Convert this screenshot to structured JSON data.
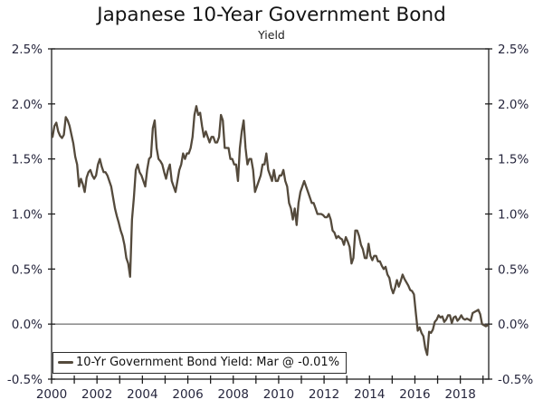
{
  "title": "Japanese 10-Year Government Bond",
  "subtitle": "Yield",
  "legend": {
    "label": "10-Yr Government Bond Yield: Mar @ -0.01%"
  },
  "colors": {
    "line": "#544a3c",
    "axis": "#1f1f1f",
    "zero_line": "#4a4a4a",
    "tick_label": "#26263d"
  },
  "chart_data": {
    "type": "line",
    "title": "Japanese 10-Year Government Bond",
    "subtitle": "Yield",
    "legend_entry": "10-Yr Government Bond Yield: Mar @ -0.01%",
    "ylim": [
      -0.5,
      2.5
    ],
    "xlim": [
      2000,
      2019.25
    ],
    "grid": false,
    "legend_position": "bottom-left",
    "y_tick_values": [
      2.5,
      2.0,
      1.5,
      1.0,
      0.5,
      0.0,
      -0.5
    ],
    "y_tick_labels": [
      "2.5%",
      "2.0%",
      "1.5%",
      "1.0%",
      "0.5%",
      "0.0%",
      "-0.5%"
    ],
    "x_tick_years": [
      2000,
      2001,
      2002,
      2003,
      2004,
      2005,
      2006,
      2007,
      2008,
      2009,
      2010,
      2011,
      2012,
      2013,
      2014,
      2015,
      2016,
      2017,
      2018,
      2019
    ],
    "x_label_years": [
      2000,
      2002,
      2004,
      2006,
      2008,
      2010,
      2012,
      2014,
      2016,
      2018
    ],
    "x_tick_labels": [
      "2000",
      "2002",
      "2004",
      "2006",
      "2008",
      "2010",
      "2012",
      "2014",
      "2016",
      "2018"
    ],
    "series": [
      {
        "name": "10-Yr Government Bond Yield",
        "start_year": 2000,
        "frequency": "monthly",
        "unit": "%",
        "values": [
          1.7,
          1.8,
          1.83,
          1.75,
          1.71,
          1.69,
          1.72,
          1.88,
          1.85,
          1.8,
          1.72,
          1.64,
          1.52,
          1.45,
          1.25,
          1.32,
          1.27,
          1.2,
          1.33,
          1.38,
          1.4,
          1.35,
          1.32,
          1.35,
          1.45,
          1.5,
          1.43,
          1.38,
          1.38,
          1.35,
          1.3,
          1.25,
          1.15,
          1.05,
          0.98,
          0.92,
          0.85,
          0.8,
          0.72,
          0.6,
          0.55,
          0.43,
          0.95,
          1.15,
          1.4,
          1.45,
          1.38,
          1.35,
          1.3,
          1.25,
          1.4,
          1.5,
          1.52,
          1.78,
          1.85,
          1.6,
          1.5,
          1.48,
          1.45,
          1.38,
          1.32,
          1.4,
          1.45,
          1.3,
          1.25,
          1.2,
          1.3,
          1.4,
          1.45,
          1.55,
          1.5,
          1.55,
          1.55,
          1.6,
          1.7,
          1.9,
          1.98,
          1.9,
          1.92,
          1.8,
          1.7,
          1.75,
          1.7,
          1.65,
          1.7,
          1.7,
          1.65,
          1.65,
          1.7,
          1.9,
          1.85,
          1.6,
          1.6,
          1.6,
          1.5,
          1.5,
          1.45,
          1.45,
          1.3,
          1.6,
          1.75,
          1.85,
          1.6,
          1.45,
          1.5,
          1.5,
          1.4,
          1.2,
          1.25,
          1.3,
          1.35,
          1.45,
          1.45,
          1.55,
          1.4,
          1.35,
          1.3,
          1.4,
          1.3,
          1.3,
          1.35,
          1.35,
          1.4,
          1.3,
          1.25,
          1.1,
          1.05,
          0.95,
          1.05,
          0.9,
          1.1,
          1.2,
          1.25,
          1.3,
          1.25,
          1.2,
          1.15,
          1.1,
          1.1,
          1.05,
          1.0,
          1.0,
          1.0,
          0.99,
          0.97,
          0.97,
          1.0,
          0.95,
          0.85,
          0.83,
          0.78,
          0.8,
          0.78,
          0.77,
          0.72,
          0.79,
          0.75,
          0.7,
          0.55,
          0.6,
          0.85,
          0.85,
          0.8,
          0.72,
          0.68,
          0.6,
          0.6,
          0.73,
          0.62,
          0.58,
          0.62,
          0.62,
          0.57,
          0.57,
          0.53,
          0.5,
          0.52,
          0.45,
          0.42,
          0.33,
          0.28,
          0.33,
          0.4,
          0.34,
          0.39,
          0.45,
          0.41,
          0.38,
          0.35,
          0.31,
          0.3,
          0.27,
          0.1,
          -0.06,
          -0.03,
          -0.08,
          -0.11,
          -0.22,
          -0.28,
          -0.07,
          -0.08,
          -0.05,
          0.02,
          0.04,
          0.08,
          0.06,
          0.07,
          0.02,
          0.04,
          0.08,
          0.08,
          0.01,
          0.06,
          0.07,
          0.03,
          0.05,
          0.08,
          0.05,
          0.04,
          0.05,
          0.04,
          0.03,
          0.1,
          0.11,
          0.12,
          0.13,
          0.09,
          0.0,
          -0.01,
          -0.02,
          -0.01
        ]
      }
    ]
  }
}
